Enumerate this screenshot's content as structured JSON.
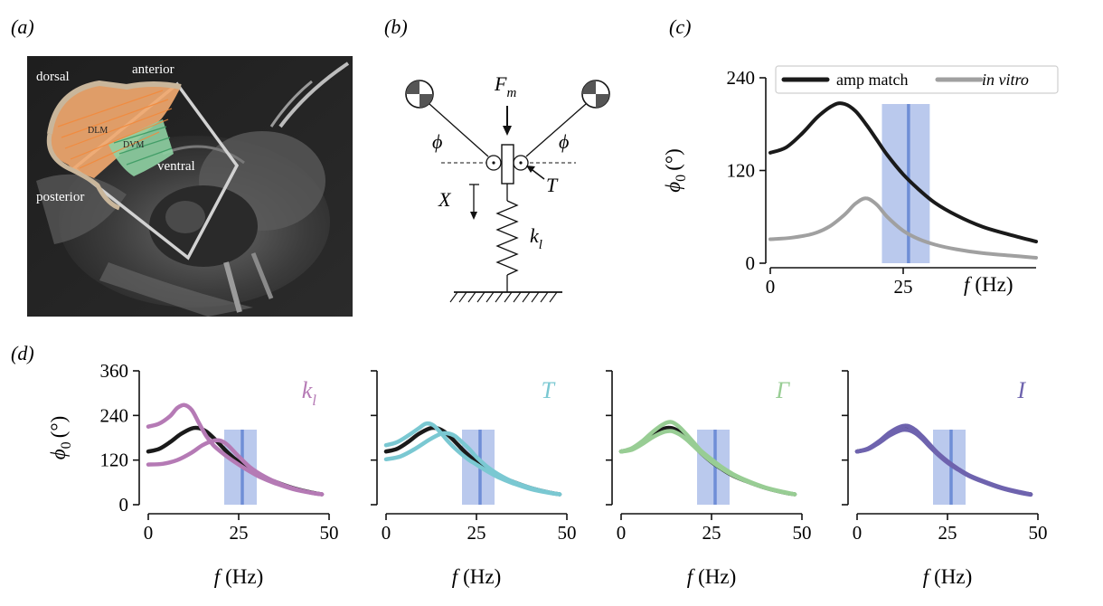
{
  "panels": {
    "a": {
      "label": "(a)",
      "orientation": {
        "dorsal": "dorsal",
        "anterior": "anterior",
        "ventral": "ventral",
        "posterior": "posterior"
      },
      "muscles": {
        "dlm": "DLM",
        "dvm": "DVM"
      }
    },
    "b": {
      "label": "(b)",
      "force": {
        "main": "F",
        "sub": "m"
      },
      "phi_left": "ϕ",
      "phi_right": "ϕ",
      "torque": "T",
      "displacement": "X",
      "spring": {
        "main": "k",
        "sub": "l"
      }
    },
    "c": {
      "label": "(c)"
    },
    "d": {
      "label": "(d)"
    }
  },
  "chart_data": [
    {
      "id": "c",
      "type": "line",
      "ylabel_main": "ϕ",
      "ylabel_sub": "0",
      "ylabel_unit": "(°)",
      "xlabel_italic": "f",
      "xlabel_unit": "(Hz)",
      "xlim": [
        0,
        50
      ],
      "ylim": [
        0,
        240
      ],
      "xticks": [
        "0",
        "25"
      ],
      "yticks": [
        "0",
        "120",
        "240"
      ],
      "legend_position": "top-right",
      "band": {
        "from": 21,
        "to": 30,
        "line": 26,
        "color": "#aec0ea",
        "line_color": "#6f8ed6"
      },
      "series": [
        {
          "name": "amp match",
          "italic": false,
          "color": "#1a1a1a",
          "x": [
            0,
            3,
            6,
            9,
            12,
            14,
            16,
            18,
            20,
            22,
            25,
            28,
            31,
            35,
            40,
            45,
            50
          ],
          "y": [
            143,
            150,
            168,
            190,
            205,
            206,
            197,
            180,
            160,
            140,
            115,
            95,
            78,
            62,
            47,
            37,
            28
          ]
        },
        {
          "name": "in vitro",
          "italic": true,
          "color": "#a0a0a0",
          "x": [
            0,
            4,
            8,
            11,
            14,
            16,
            18,
            20,
            22,
            25,
            28,
            31,
            35,
            40,
            45,
            50
          ],
          "y": [
            31,
            33,
            38,
            47,
            63,
            77,
            84,
            76,
            60,
            42,
            31,
            24,
            18,
            13,
            10,
            7
          ]
        }
      ]
    },
    {
      "id": "d-kl",
      "type": "line",
      "param_main": "k",
      "param_sub": "l",
      "param_color": "#b57ab5",
      "ylabel_main": "ϕ",
      "ylabel_sub": "0",
      "ylabel_unit": "(°)",
      "xlabel_italic": "f",
      "xlabel_unit": "(Hz)",
      "xlim": [
        0,
        50
      ],
      "ylim": [
        0,
        360
      ],
      "xticks": [
        "0",
        "25",
        "50"
      ],
      "yticks": [
        "0",
        "120",
        "240",
        "360"
      ],
      "band": {
        "from": 21,
        "to": 30,
        "line": 26,
        "color": "#aec0ea",
        "line_color": "#6f8ed6"
      },
      "series": [
        {
          "role": "baseline",
          "color": "#1a1a1a",
          "x": [
            0,
            3,
            6,
            9,
            12,
            14,
            16,
            18,
            20,
            22,
            25,
            28,
            31,
            35,
            40,
            45,
            48
          ],
          "y": [
            143,
            150,
            168,
            190,
            205,
            206,
            197,
            180,
            160,
            140,
            115,
            95,
            78,
            62,
            45,
            33,
            28
          ]
        },
        {
          "role": "upper",
          "color": "#b57ab5",
          "x": [
            0,
            3,
            6,
            8,
            10,
            12,
            14,
            16,
            18,
            20,
            22,
            25,
            28,
            31,
            35,
            40,
            45,
            48
          ],
          "y": [
            210,
            218,
            238,
            260,
            268,
            255,
            220,
            185,
            160,
            143,
            128,
            108,
            90,
            74,
            58,
            42,
            32,
            28
          ]
        },
        {
          "role": "lower",
          "color": "#b57ab5",
          "x": [
            0,
            4,
            8,
            12,
            15,
            18,
            20,
            22,
            25,
            28,
            31,
            35,
            40,
            45,
            48
          ],
          "y": [
            108,
            110,
            120,
            140,
            160,
            172,
            172,
            160,
            130,
            102,
            82,
            62,
            44,
            32,
            28
          ]
        }
      ]
    },
    {
      "id": "d-T",
      "type": "line",
      "param_main": "T",
      "param_sub": "",
      "param_color": "#7ac8d2",
      "xlabel_italic": "f",
      "xlabel_unit": "(Hz)",
      "xlim": [
        0,
        50
      ],
      "ylim": [
        0,
        360
      ],
      "xticks": [
        "0",
        "25",
        "50"
      ],
      "band": {
        "from": 21,
        "to": 30,
        "line": 26,
        "color": "#aec0ea",
        "line_color": "#6f8ed6"
      },
      "series": [
        {
          "role": "baseline",
          "color": "#1a1a1a",
          "x": [
            0,
            3,
            6,
            9,
            12,
            14,
            16,
            18,
            20,
            22,
            25,
            28,
            31,
            35,
            40,
            45,
            48
          ],
          "y": [
            143,
            150,
            168,
            190,
            205,
            206,
            197,
            180,
            160,
            140,
            115,
            95,
            78,
            62,
            45,
            33,
            28
          ]
        },
        {
          "role": "upper",
          "color": "#7ac8d2",
          "x": [
            0,
            3,
            6,
            9,
            11,
            13,
            15,
            17,
            19,
            21,
            23,
            25,
            28,
            31,
            35,
            40,
            45,
            48
          ],
          "y": [
            160,
            168,
            185,
            205,
            218,
            214,
            195,
            172,
            152,
            135,
            120,
            108,
            90,
            74,
            58,
            42,
            32,
            28
          ]
        },
        {
          "role": "lower",
          "color": "#7ac8d2",
          "x": [
            0,
            4,
            8,
            12,
            15,
            17,
            19,
            21,
            23,
            25,
            28,
            31,
            35,
            40,
            45,
            48
          ],
          "y": [
            122,
            130,
            150,
            175,
            190,
            192,
            185,
            168,
            150,
            128,
            102,
            82,
            62,
            45,
            33,
            28
          ]
        }
      ]
    },
    {
      "id": "d-Gamma",
      "type": "line",
      "param_main": "Γ",
      "param_sub": "",
      "param_color": "#98cd94",
      "xlabel_italic": "f",
      "xlabel_unit": "(Hz)",
      "xlim": [
        0,
        50
      ],
      "ylim": [
        0,
        360
      ],
      "xticks": [
        "0",
        "25",
        "50"
      ],
      "band": {
        "from": 21,
        "to": 30,
        "line": 26,
        "color": "#aec0ea",
        "line_color": "#6f8ed6"
      },
      "series": [
        {
          "role": "baseline",
          "color": "#1a1a1a",
          "x": [
            0,
            3,
            6,
            9,
            12,
            14,
            16,
            18,
            20,
            22,
            25,
            28,
            31,
            35,
            40,
            45,
            48
          ],
          "y": [
            143,
            150,
            168,
            190,
            205,
            206,
            197,
            180,
            160,
            140,
            115,
            95,
            78,
            62,
            45,
            33,
            28
          ]
        },
        {
          "role": "upper",
          "color": "#98cd94",
          "x": [
            0,
            3,
            6,
            9,
            12,
            14,
            16,
            18,
            20,
            22,
            25,
            28,
            31,
            35,
            40,
            45,
            48
          ],
          "y": [
            143,
            152,
            172,
            198,
            218,
            222,
            210,
            190,
            168,
            146,
            122,
            100,
            82,
            64,
            46,
            34,
            28
          ]
        },
        {
          "role": "lower",
          "color": "#98cd94",
          "x": [
            0,
            3,
            6,
            9,
            12,
            14,
            16,
            18,
            20,
            22,
            25,
            28,
            31,
            35,
            40,
            45,
            48
          ],
          "y": [
            143,
            148,
            164,
            183,
            196,
            198,
            190,
            176,
            158,
            140,
            116,
            96,
            79,
            62,
            45,
            33,
            28
          ]
        }
      ]
    },
    {
      "id": "d-I",
      "type": "line",
      "param_main": "I",
      "param_sub": "",
      "param_color": "#6e63ae",
      "xlabel_italic": "f",
      "xlabel_unit": "(Hz)",
      "xlim": [
        0,
        50
      ],
      "ylim": [
        0,
        360
      ],
      "xticks": [
        "0",
        "25",
        "50"
      ],
      "band": {
        "from": 21,
        "to": 30,
        "line": 26,
        "color": "#aec0ea",
        "line_color": "#6f8ed6"
      },
      "series": [
        {
          "role": "baseline",
          "color": "#1a1a1a",
          "x": [
            0,
            3,
            6,
            9,
            12,
            14,
            16,
            18,
            20,
            22,
            25,
            28,
            31,
            35,
            40,
            45,
            48
          ],
          "y": [
            143,
            150,
            168,
            190,
            205,
            206,
            197,
            180,
            160,
            140,
            115,
            95,
            78,
            62,
            45,
            33,
            28
          ]
        },
        {
          "role": "upper",
          "color": "#6e63ae",
          "x": [
            0,
            3,
            6,
            9,
            12,
            14,
            16,
            18,
            20,
            22,
            25,
            28,
            31,
            35,
            40,
            45,
            48
          ],
          "y": [
            143,
            151,
            170,
            194,
            210,
            212,
            202,
            184,
            163,
            142,
            117,
            96,
            79,
            63,
            46,
            34,
            28
          ]
        },
        {
          "role": "lower",
          "color": "#6e63ae",
          "x": [
            0,
            3,
            6,
            9,
            12,
            14,
            16,
            18,
            20,
            22,
            25,
            28,
            31,
            35,
            40,
            45,
            48
          ],
          "y": [
            143,
            149,
            166,
            186,
            200,
            201,
            193,
            177,
            157,
            138,
            113,
            94,
            77,
            61,
            44,
            32,
            27
          ]
        }
      ]
    }
  ]
}
